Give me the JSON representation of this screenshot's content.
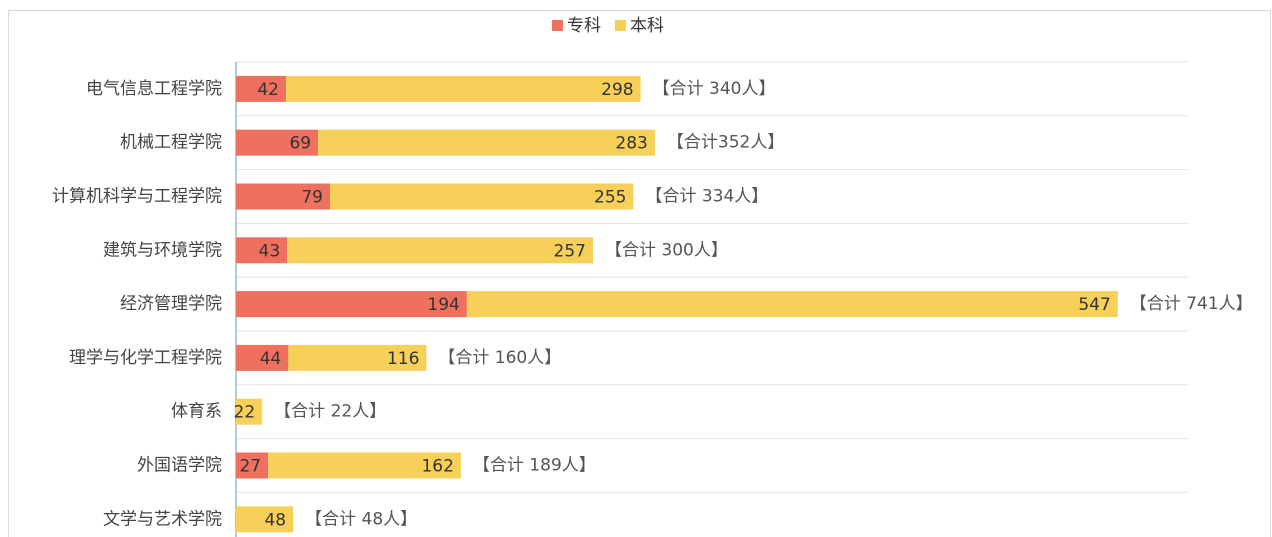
{
  "chart_data": {
    "type": "bar",
    "orientation": "horizontal",
    "stacked": true,
    "categories": [
      "电气信息工程学院",
      "机械工程学院",
      "计算机科学与工程学院",
      "建筑与环境学院",
      "经济管理学院",
      "理学与化学工程学院",
      "体育系",
      "外国语学院",
      "文学与艺术学院"
    ],
    "series": [
      {
        "name": "专科",
        "color": "#f0705f",
        "values": [
          42,
          69,
          79,
          43,
          194,
          44,
          null,
          27,
          null
        ]
      },
      {
        "name": "本科",
        "color": "#f7d05a",
        "values": [
          298,
          283,
          255,
          257,
          547,
          116,
          22,
          162,
          48
        ]
      }
    ],
    "annotations": [
      "【合计 340人】",
      "【合计352人】",
      "【合计 334人】",
      "【合计 300人】",
      "【合计 741人】",
      "【合计 160人】",
      "【合计 22人】",
      "【合计 189人】",
      "【合计 48人】"
    ],
    "xlim": [
      0,
      800
    ],
    "grid": true,
    "legend": "top"
  }
}
